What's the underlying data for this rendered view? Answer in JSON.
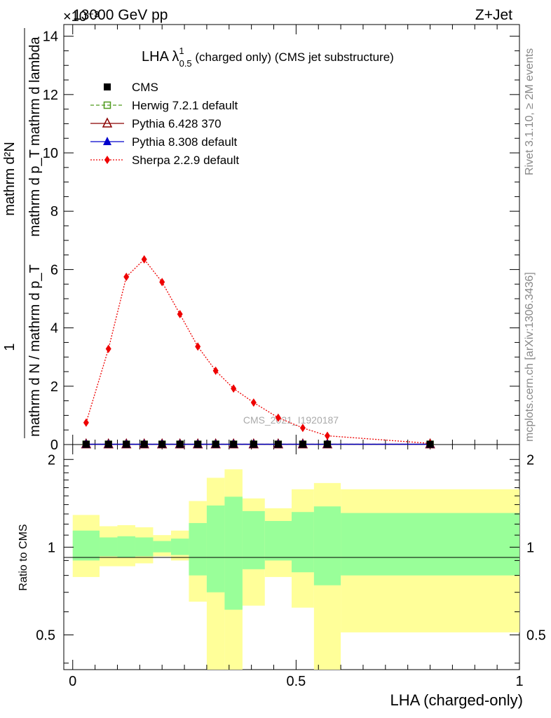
{
  "header": {
    "left": "13000 GeV pp",
    "right": "Z+Jet",
    "exponent": "×10⁻³"
  },
  "title": {
    "main": "LHA λ",
    "sup": "1",
    "sub": "0.5",
    "rest": " (charged only) (CMS jet substructure)"
  },
  "side_labels": {
    "rivet": "Rivet 3.1.10, ≥ 2M events",
    "mcplots": "mcplots.cern.ch [arXiv:1306.3436]"
  },
  "watermark": "CMS_2021_I1920187",
  "ylabel": {
    "numerator": "1",
    "denominator": "mathrm d N / mathrm d p_T",
    "dn": "mathrm d²N",
    "dd": "mathrm d p_T mathrm d lambda"
  },
  "ratio_ylabel": "Ratio to CMS",
  "xlabel": "LHA (charged-only)",
  "chart_data": [
    {
      "type": "line",
      "title": "LHA λ^1_0.5 (charged only) (CMS jet substructure)",
      "xlabel": "LHA (charged-only)",
      "ylabel": "1/(mathrm d N / mathrm d p_T) mathrm d²N / (mathrm d p_T mathrm d lambda)",
      "y_scale_note": "×10⁻³",
      "xlim": [
        -0.02,
        1.0
      ],
      "ylim": [
        0,
        14.4
      ],
      "xticks": [
        0,
        0.5,
        1
      ],
      "xtick_labels": [
        "0",
        "0.5",
        "1"
      ],
      "yticks": [
        0,
        2,
        4,
        6,
        8,
        10,
        12,
        14
      ],
      "ytick_labels": [
        "0",
        "2",
        "4",
        "6",
        "8",
        "10",
        "12",
        "14"
      ],
      "legend_position": "top-left",
      "bin_edges": [
        0,
        0.06,
        0.1,
        0.14,
        0.18,
        0.22,
        0.26,
        0.3,
        0.34,
        0.38,
        0.43,
        0.49,
        0.54,
        0.6,
        1.0
      ],
      "x": [
        0.03,
        0.08,
        0.12,
        0.16,
        0.2,
        0.24,
        0.28,
        0.32,
        0.36,
        0.405,
        0.46,
        0.515,
        0.57,
        0.8
      ],
      "series": [
        {
          "name": "CMS",
          "marker": "filled-square",
          "color": "#000000",
          "values": [
            0.01,
            0.01,
            0.01,
            0.01,
            0.01,
            0.01,
            0.01,
            0.01,
            0.01,
            0.01,
            0.01,
            0.01,
            0.01,
            0.01
          ]
        },
        {
          "name": "Herwig 7.2.1 default",
          "marker": "open-square",
          "line": "dashed",
          "color": "#4f9a1e",
          "values": [
            0.01,
            0.01,
            0.01,
            0.01,
            0.01,
            0.01,
            0.01,
            0.01,
            0.01,
            0.01,
            0.01,
            0.01,
            0.01,
            0.01
          ]
        },
        {
          "name": "Pythia 6.428 370",
          "marker": "open-triangle",
          "line": "solid",
          "color": "#8b0000",
          "values": [
            0.01,
            0.01,
            0.01,
            0.01,
            0.01,
            0.01,
            0.01,
            0.01,
            0.01,
            0.01,
            0.01,
            0.01,
            0.01,
            0.01
          ]
        },
        {
          "name": "Pythia 8.308 default",
          "marker": "filled-triangle",
          "line": "solid",
          "color": "#0000cc",
          "values": [
            0.01,
            0.01,
            0.01,
            0.01,
            0.01,
            0.01,
            0.01,
            0.01,
            0.01,
            0.01,
            0.01,
            0.01,
            0.01,
            0.01
          ]
        },
        {
          "name": "Sherpa 2.2.9 default",
          "marker": "filled-diamond",
          "line": "dotted",
          "color": "#ee0000",
          "values": [
            0.75,
            3.28,
            5.75,
            6.35,
            5.57,
            4.47,
            3.36,
            2.53,
            1.92,
            1.44,
            0.92,
            0.57,
            0.3,
            0.04
          ]
        }
      ]
    },
    {
      "type": "area",
      "title": "",
      "ylabel": "Ratio to CMS",
      "xlabel": "LHA (charged-only)",
      "xlim": [
        -0.02,
        1.0
      ],
      "ylim": [
        0.38,
        2.25
      ],
      "yticks": [
        0.5,
        1,
        2
      ],
      "ytick_labels": [
        "0.5",
        "1",
        "2"
      ],
      "reference_line": 1,
      "bin_edges": [
        0,
        0.06,
        0.1,
        0.14,
        0.18,
        0.22,
        0.26,
        0.3,
        0.34,
        0.38,
        0.43,
        0.49,
        0.54,
        0.6,
        1.0
      ],
      "bands": [
        {
          "name": "inner",
          "color": "#99ff99",
          "low": [
            0.9,
            0.93,
            0.92,
            0.93,
            0.96,
            0.94,
            0.8,
            0.7,
            0.61,
            0.84,
            0.9,
            0.82,
            0.74,
            0.8
          ],
          "high": [
            1.14,
            1.08,
            1.09,
            1.08,
            1.05,
            1.07,
            1.21,
            1.39,
            1.49,
            1.33,
            1.23,
            1.32,
            1.38,
            1.31
          ]
        },
        {
          "name": "outer",
          "color": "#ffff99",
          "low": [
            0.79,
            0.86,
            0.86,
            0.88,
            0.93,
            0.9,
            0.65,
            0.35,
            0.35,
            0.63,
            0.79,
            0.62,
            0.35,
            0.51
          ],
          "high": [
            1.29,
            1.18,
            1.19,
            1.17,
            1.1,
            1.14,
            1.44,
            1.73,
            1.85,
            1.47,
            1.36,
            1.58,
            1.66,
            1.58
          ]
        }
      ]
    }
  ]
}
